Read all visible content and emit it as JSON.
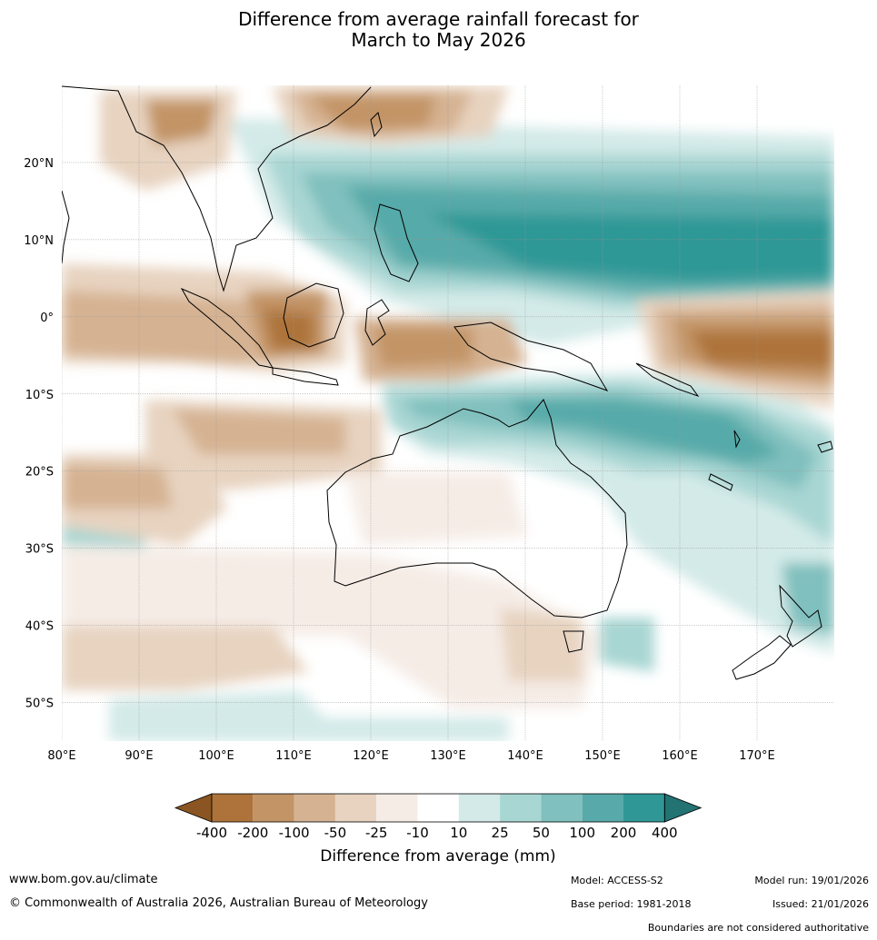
{
  "title": {
    "line1": "Difference from average rainfall forecast for",
    "line2": "March to May 2026"
  },
  "axes": {
    "lon_labels": [
      "80°E",
      "90°E",
      "100°E",
      "110°E",
      "120°E",
      "130°E",
      "140°E",
      "150°E",
      "160°E",
      "170°E"
    ],
    "lat_labels": [
      "20°N",
      "10°N",
      "0°",
      "10°S",
      "20°S",
      "30°S",
      "40°S",
      "50°S"
    ],
    "lon_range": [
      80,
      180
    ],
    "lat_range": [
      -55,
      30
    ]
  },
  "colorbar": {
    "title": "Difference from average (mm)",
    "labels": [
      "-400",
      "-200",
      "-100",
      "-50",
      "-25",
      "-10",
      "10",
      "25",
      "50",
      "100",
      "200",
      "400"
    ],
    "colors": [
      "#8b5523",
      "#ad733a",
      "#c39466",
      "#d5b292",
      "#e7d3c0",
      "#f5ece6",
      "#ffffff",
      "#d3eae8",
      "#a8d6d3",
      "#80c0be",
      "#57aaa9",
      "#2f9896",
      "#237373"
    ]
  },
  "footer": {
    "website": "www.bom.gov.au/climate",
    "copyright": "© Commonwealth of Australia 2026, Australian Bureau of Meteorology",
    "model": "Model: ACCESS-S2",
    "base_period": "Base period: 1981-2018",
    "model_run": "Model run: 19/01/2026",
    "issued": "Issued: 21/01/2026",
    "disclaimer": "Boundaries are not considered authoritative"
  }
}
